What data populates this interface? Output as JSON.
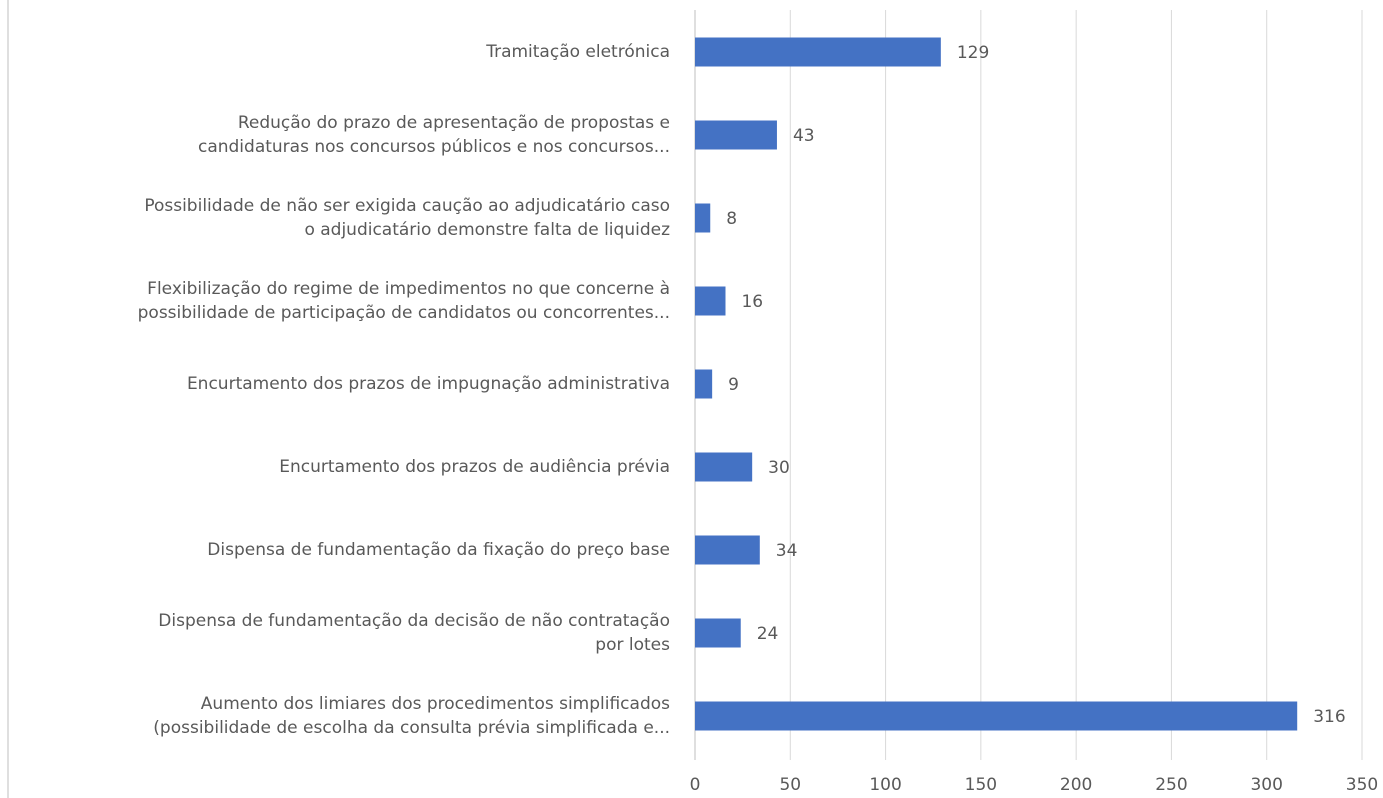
{
  "chart_data": {
    "type": "bar",
    "orientation": "horizontal",
    "categories": [
      [
        "Tramitação eletrónica"
      ],
      [
        "Redução do prazo de apresentação de propostas e",
        "candidaturas nos concursos públicos e nos concursos..."
      ],
      [
        "Possibilidade de não ser exigida caução ao adjudicatário caso",
        "o adjudicatário demonstre falta de liquidez"
      ],
      [
        "Flexibilização do regime de impedimentos no que concerne à",
        "possibilidade de participação de candidatos ou concorrentes..."
      ],
      [
        "Encurtamento dos prazos de impugnação administrativa"
      ],
      [
        "Encurtamento dos prazos de audiência prévia"
      ],
      [
        "Dispensa de fundamentação da fixação do preço base"
      ],
      [
        "Dispensa de fundamentação da decisão de não contratação",
        "por lotes"
      ],
      [
        "Aumento dos limiares dos procedimentos simplificados",
        "(possibilidade de escolha da consulta prévia simplificada e..."
      ]
    ],
    "values": [
      129,
      43,
      8,
      16,
      9,
      30,
      34,
      24,
      316
    ],
    "color": "#4472c4",
    "xlim": [
      0,
      350
    ],
    "xticks": [
      0,
      50,
      100,
      150,
      200,
      250,
      300,
      350
    ],
    "grid": true
  }
}
